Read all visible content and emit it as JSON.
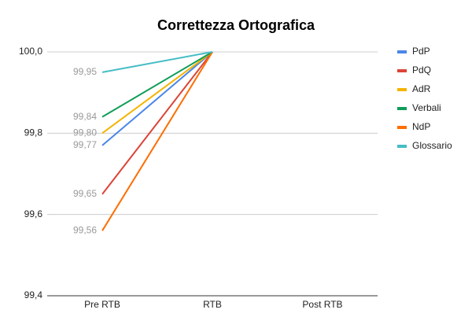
{
  "chart_data": {
    "type": "line",
    "title": "Correttezza Ortografica",
    "categories": [
      "Pre RTB",
      "RTB",
      "Post RTB"
    ],
    "series": [
      {
        "name": "PdP",
        "color": "#4a86e8",
        "values": [
          99.77,
          100,
          null
        ],
        "value_labels": [
          "99,77",
          null,
          null
        ]
      },
      {
        "name": "PdQ",
        "color": "#db4437",
        "values": [
          99.65,
          100,
          null
        ],
        "value_labels": [
          "99,65",
          null,
          null
        ]
      },
      {
        "name": "AdR",
        "color": "#f4b400",
        "values": [
          99.8,
          100,
          null
        ],
        "value_labels": [
          "99,80",
          null,
          null
        ]
      },
      {
        "name": "Verbali",
        "color": "#0f9d58",
        "values": [
          99.84,
          100,
          null
        ],
        "value_labels": [
          "99,84",
          null,
          null
        ]
      },
      {
        "name": "NdP",
        "color": "#ff6d00",
        "values": [
          99.56,
          100,
          null
        ],
        "value_labels": [
          "99,56",
          null,
          null
        ]
      },
      {
        "name": "Glossario",
        "color": "#46bdc6",
        "values": [
          99.95,
          100,
          null
        ],
        "value_labels": [
          "99,95",
          null,
          null
        ]
      }
    ],
    "ylim": [
      99.4,
      100
    ],
    "yticks": [
      {
        "value": 99.4,
        "label": "99,4"
      },
      {
        "value": 99.6,
        "label": "99,6"
      },
      {
        "value": 99.8,
        "label": "99,8"
      },
      {
        "value": 100,
        "label": "100,0"
      }
    ],
    "grid": true,
    "legend": "right"
  }
}
